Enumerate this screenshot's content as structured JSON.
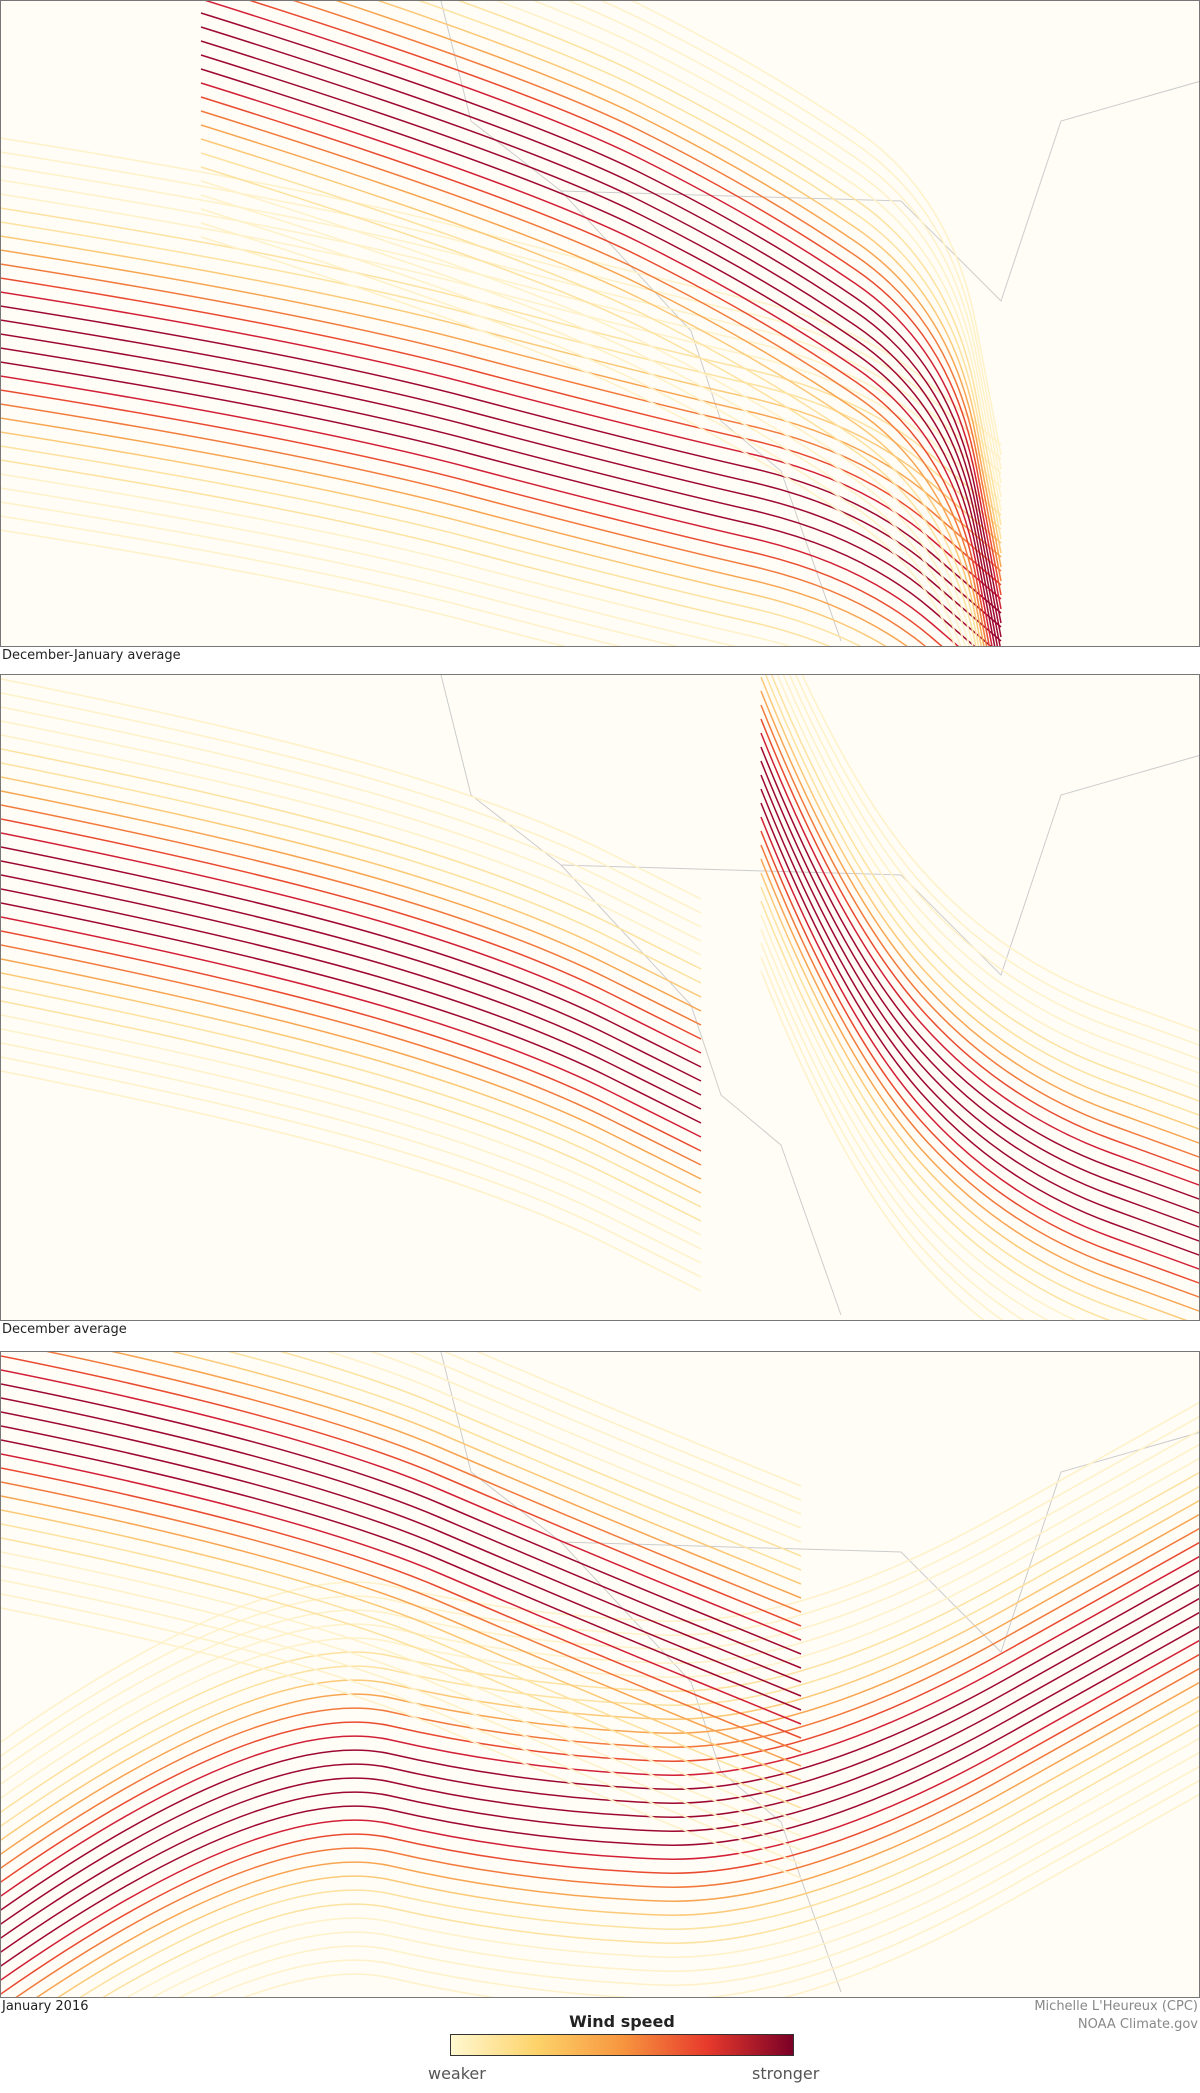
{
  "panels": [
    {
      "caption": "December-January average"
    },
    {
      "caption": "December average"
    },
    {
      "caption": "January 2016"
    }
  ],
  "legend": {
    "title": "Wind speed",
    "low": "weaker",
    "high": "stronger"
  },
  "credits": [
    "Michelle L'Heureux (CPC)",
    "NOAA Climate.gov"
  ]
}
